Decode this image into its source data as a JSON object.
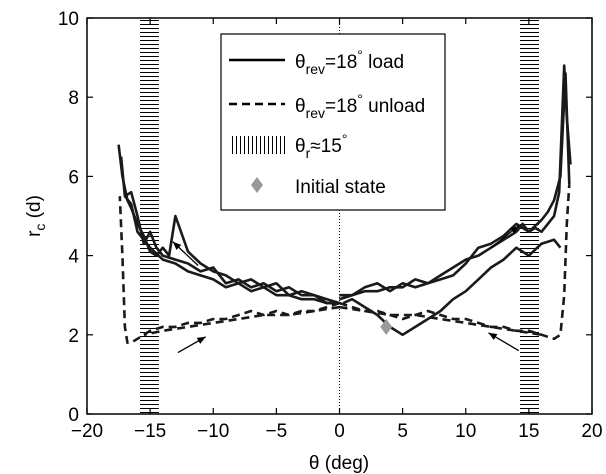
{
  "chart_data": {
    "type": "line",
    "xlabel": "θ (deg)",
    "ylabel": "r",
    "ylabel_sub": "c",
    "ylabel_unit": " (d)",
    "xlim": [
      -20,
      20
    ],
    "ylim": [
      0,
      10
    ],
    "xticks": [
      -20,
      -15,
      -10,
      -5,
      0,
      5,
      10,
      15,
      20
    ],
    "yticks": [
      0,
      2,
      4,
      6,
      8,
      10
    ],
    "xtick_labels": [
      "−20",
      "−15",
      "−10",
      "−5",
      "0",
      "5",
      "10",
      "15",
      "20"
    ],
    "ytick_labels": [
      "0",
      "2",
      "4",
      "6",
      "8",
      "10"
    ],
    "grid": false,
    "legend_position": "top-center",
    "legend": [
      {
        "key": "load",
        "style": "solid",
        "prefix": "θ",
        "sub": "rev",
        "mid": "=18",
        "sup": "°",
        "suffix": " load"
      },
      {
        "key": "unload",
        "style": "dashed",
        "prefix": "θ",
        "sub": "rev",
        "mid": "=18",
        "sup": "°",
        "suffix": " unload"
      },
      {
        "key": "band",
        "style": "hatch",
        "prefix": "θ",
        "sub": "r",
        "mid": "≈15",
        "sup": "°",
        "suffix": ""
      },
      {
        "key": "initial",
        "style": "diamond",
        "prefix": "",
        "sub": "",
        "mid": "",
        "sup": "",
        "suffix": "Initial state"
      }
    ],
    "bands": [
      {
        "x0": -15.8,
        "x1": -14.3
      },
      {
        "x0": 14.3,
        "x1": 15.8
      }
    ],
    "reference_line": {
      "x": 0
    },
    "initial_state": {
      "x": 3.7,
      "y": 2.2,
      "color": "#999999"
    },
    "arrows": [
      {
        "from": [
          -11.2,
          3.75
        ],
        "to": [
          -13.2,
          4.35
        ]
      },
      {
        "from": [
          12.0,
          4.2
        ],
        "to": [
          14.2,
          4.75
        ]
      },
      {
        "from": [
          -12.8,
          1.55
        ],
        "to": [
          -10.6,
          1.95
        ]
      },
      {
        "from": [
          14.2,
          1.6
        ],
        "to": [
          11.8,
          2.05
        ]
      }
    ],
    "series": [
      {
        "key": "load_right_1",
        "style": "solid",
        "x": [
          0,
          1,
          2,
          3,
          4,
          5,
          6,
          7,
          8,
          9,
          10,
          11,
          12,
          13,
          14,
          14.5,
          15,
          15.5,
          16,
          16.5,
          17,
          17.4,
          17.8,
          18.0,
          18.3
        ],
        "y": [
          2.9,
          3.0,
          3.1,
          3.1,
          3.2,
          3.2,
          3.4,
          3.3,
          3.5,
          3.7,
          3.9,
          4.0,
          4.2,
          4.4,
          4.6,
          4.8,
          4.6,
          4.7,
          4.6,
          4.8,
          5.0,
          5.6,
          8.8,
          7.5,
          6.3
        ]
      },
      {
        "key": "load_right_2",
        "style": "solid",
        "x": [
          0,
          1,
          2,
          3,
          4,
          5,
          6,
          7,
          8,
          9,
          10,
          11,
          12,
          13,
          14,
          15,
          16,
          16.5,
          17,
          17.5,
          17.9,
          18.2
        ],
        "y": [
          3.0,
          3.0,
          3.2,
          3.3,
          3.1,
          3.3,
          3.2,
          3.3,
          3.4,
          3.5,
          3.8,
          4.2,
          4.3,
          4.5,
          4.8,
          4.6,
          4.9,
          5.1,
          5.4,
          6.0,
          8.6,
          5.8
        ]
      },
      {
        "key": "load_right_3",
        "style": "solid",
        "x": [
          0.3,
          1,
          2,
          3,
          4,
          5,
          6,
          7,
          8,
          9,
          10,
          11,
          12,
          13,
          14,
          15,
          16,
          17,
          17.5
        ],
        "y": [
          2.8,
          2.9,
          2.7,
          2.5,
          2.2,
          2.0,
          2.2,
          2.4,
          2.6,
          2.9,
          3.1,
          3.4,
          3.7,
          3.9,
          4.2,
          4.0,
          4.3,
          4.4,
          4.2
        ]
      },
      {
        "key": "load_left_1",
        "style": "solid",
        "x": [
          -17.5,
          -17.2,
          -16.8,
          -16.5,
          -16.0,
          -15.5,
          -15.0,
          -14.5,
          -14.0,
          -13.5,
          -13.0,
          -12.0,
          -11.0,
          -10.0,
          -9.0,
          -8.0,
          -7.0,
          -6.0,
          -5.0,
          -4.0,
          -3.0,
          -2.0,
          -1.0,
          0
        ],
        "y": [
          6.8,
          6.0,
          5.4,
          5.2,
          4.8,
          4.5,
          4.1,
          4.0,
          4.2,
          4.0,
          5.0,
          4.1,
          3.8,
          3.6,
          3.5,
          3.3,
          3.4,
          3.2,
          3.3,
          3.0,
          3.1,
          3.0,
          2.9,
          2.8
        ]
      },
      {
        "key": "load_left_2",
        "style": "solid",
        "x": [
          -17.3,
          -17.0,
          -16.5,
          -16.0,
          -15.5,
          -15.0,
          -14.5,
          -14.0,
          -13.0,
          -12.0,
          -11.0,
          -10.0,
          -9.0,
          -8.0,
          -7.0,
          -6.0,
          -5.0,
          -4.0,
          -3.0,
          -2.0,
          -1.0,
          0
        ],
        "y": [
          6.5,
          5.5,
          5.6,
          5.0,
          4.3,
          4.6,
          4.2,
          4.0,
          3.9,
          3.8,
          3.6,
          3.7,
          3.3,
          3.4,
          3.2,
          3.3,
          3.1,
          3.2,
          3.0,
          3.0,
          2.8,
          2.8
        ]
      },
      {
        "key": "load_left_3",
        "style": "solid",
        "x": [
          -17.0,
          -16.5,
          -16.0,
          -15.5,
          -15.0,
          -14.0,
          -13.0,
          -12.0,
          -11.0,
          -10.0,
          -9.0,
          -8.0,
          -7.0,
          -6.0,
          -5.0,
          -4.0,
          -3.0,
          -2.0,
          -1.0,
          0
        ],
        "y": [
          5.5,
          5.3,
          4.6,
          4.4,
          4.2,
          3.9,
          3.8,
          3.6,
          3.5,
          3.4,
          3.2,
          3.3,
          3.1,
          3.2,
          3.0,
          3.0,
          2.9,
          2.9,
          2.8,
          2.8
        ]
      },
      {
        "key": "unload_left",
        "style": "dashed",
        "x": [
          0,
          -1,
          -2,
          -3,
          -4,
          -5,
          -6,
          -7,
          -8,
          -9,
          -10,
          -11,
          -12,
          -13,
          -14,
          -15,
          -15.5,
          -16.0,
          -16.5,
          -16.8,
          -17.0,
          -17.2,
          -17.4
        ],
        "y": [
          2.8,
          2.7,
          2.6,
          2.6,
          2.5,
          2.6,
          2.5,
          2.6,
          2.5,
          2.4,
          2.4,
          2.3,
          2.3,
          2.2,
          2.2,
          2.1,
          2.0,
          1.9,
          1.8,
          1.8,
          2.2,
          4.0,
          5.5
        ]
      },
      {
        "key": "unload_left_2",
        "style": "dashed",
        "x": [
          0,
          -2,
          -4,
          -6,
          -8,
          -10,
          -12,
          -14,
          -15.5
        ],
        "y": [
          2.7,
          2.6,
          2.5,
          2.5,
          2.4,
          2.3,
          2.2,
          2.1,
          2.0
        ]
      },
      {
        "key": "unload_right",
        "style": "dashed",
        "x": [
          0,
          1,
          2,
          3,
          4,
          5,
          6,
          7,
          8,
          9,
          10,
          11,
          12,
          13,
          14,
          15,
          16,
          17,
          17.5,
          17.8,
          18.0,
          18.2
        ],
        "y": [
          2.8,
          2.7,
          2.6,
          2.6,
          2.5,
          2.4,
          2.5,
          2.6,
          2.5,
          2.4,
          2.4,
          2.3,
          2.2,
          2.2,
          2.1,
          2.1,
          2.0,
          1.9,
          2.0,
          3.0,
          4.8,
          5.8
        ]
      },
      {
        "key": "unload_right_2",
        "style": "dashed",
        "x": [
          0,
          2,
          4,
          6,
          8,
          10,
          12,
          14,
          16
        ],
        "y": [
          2.7,
          2.6,
          2.5,
          2.5,
          2.4,
          2.3,
          2.2,
          2.1,
          2.0
        ]
      }
    ]
  }
}
